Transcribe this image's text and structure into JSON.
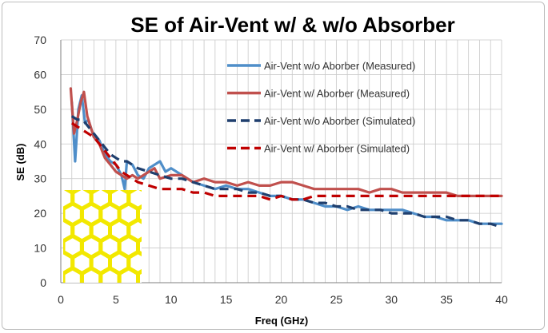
{
  "chart_data": {
    "type": "line",
    "title": "SE of Air-Vent w/ & w/o Absorber",
    "xlabel": "Freq (GHz)",
    "ylabel": "SE (dB)",
    "xlim": [
      0,
      40
    ],
    "ylim": [
      0,
      70
    ],
    "x_ticks": [
      0,
      5,
      10,
      15,
      20,
      25,
      30,
      35,
      40
    ],
    "y_ticks": [
      0,
      10,
      20,
      30,
      40,
      50,
      60,
      70
    ],
    "grid": true,
    "legend_position": "top-right",
    "series": [
      {
        "name": "Air-Vent w/o Aborber (Measured)",
        "color": "#4f8ec9",
        "dash": "solid",
        "points": [
          [
            1,
            52
          ],
          [
            1.3,
            35
          ],
          [
            1.6,
            50
          ],
          [
            1.9,
            54
          ],
          [
            2.2,
            46
          ],
          [
            2.5,
            47
          ],
          [
            3,
            42
          ],
          [
            3.5,
            41
          ],
          [
            4,
            37
          ],
          [
            4.5,
            35
          ],
          [
            5,
            34
          ],
          [
            5.5,
            31
          ],
          [
            5.8,
            27
          ],
          [
            6,
            35
          ],
          [
            6.5,
            34
          ],
          [
            7,
            31
          ],
          [
            7.5,
            30
          ],
          [
            8,
            33
          ],
          [
            8.5,
            34
          ],
          [
            9,
            35
          ],
          [
            9.5,
            32
          ],
          [
            10,
            33
          ],
          [
            11,
            31
          ],
          [
            12,
            29
          ],
          [
            13,
            28
          ],
          [
            14,
            27
          ],
          [
            15,
            28
          ],
          [
            16,
            27
          ],
          [
            17,
            27
          ],
          [
            18,
            26
          ],
          [
            19,
            25
          ],
          [
            20,
            25
          ],
          [
            21,
            24
          ],
          [
            22,
            24
          ],
          [
            23,
            23
          ],
          [
            24,
            22
          ],
          [
            25,
            22
          ],
          [
            26,
            21
          ],
          [
            27,
            22
          ],
          [
            28,
            21
          ],
          [
            29,
            21
          ],
          [
            30,
            21
          ],
          [
            31,
            21
          ],
          [
            32,
            20
          ],
          [
            33,
            19
          ],
          [
            34,
            19
          ],
          [
            35,
            18
          ],
          [
            36,
            18
          ],
          [
            37,
            18
          ],
          [
            38,
            17
          ],
          [
            39,
            17
          ],
          [
            40,
            17
          ]
        ]
      },
      {
        "name": "Air-Vent w/ Aborber (Measured)",
        "color": "#c0504d",
        "dash": "solid",
        "points": [
          [
            0.9,
            56
          ],
          [
            1.2,
            43
          ],
          [
            1.5,
            47
          ],
          [
            1.8,
            52
          ],
          [
            2.1,
            55
          ],
          [
            2.4,
            48
          ],
          [
            3,
            42
          ],
          [
            3.5,
            40
          ],
          [
            4,
            36
          ],
          [
            4.5,
            34
          ],
          [
            5,
            32
          ],
          [
            5.5,
            31
          ],
          [
            6,
            30
          ],
          [
            6.5,
            31
          ],
          [
            7,
            30
          ],
          [
            7.5,
            31
          ],
          [
            8,
            32
          ],
          [
            8.5,
            33
          ],
          [
            9,
            30
          ],
          [
            10,
            31
          ],
          [
            11,
            31
          ],
          [
            12,
            29
          ],
          [
            13,
            30
          ],
          [
            14,
            29
          ],
          [
            15,
            29
          ],
          [
            16,
            28
          ],
          [
            17,
            29
          ],
          [
            18,
            28
          ],
          [
            19,
            28
          ],
          [
            20,
            29
          ],
          [
            21,
            29
          ],
          [
            22,
            28
          ],
          [
            23,
            27
          ],
          [
            24,
            27
          ],
          [
            25,
            27
          ],
          [
            26,
            27
          ],
          [
            27,
            27
          ],
          [
            28,
            26
          ],
          [
            29,
            27
          ],
          [
            30,
            27
          ],
          [
            31,
            26
          ],
          [
            32,
            26
          ],
          [
            33,
            26
          ],
          [
            34,
            26
          ],
          [
            35,
            26
          ],
          [
            36,
            25
          ],
          [
            37,
            25
          ],
          [
            38,
            25
          ],
          [
            39,
            25
          ],
          [
            40,
            25
          ]
        ]
      },
      {
        "name": "Air-Vent w/o Aborber (Simulated)",
        "color": "#1f3f6e",
        "dash": "dashed",
        "points": [
          [
            1,
            48
          ],
          [
            1.5,
            47
          ],
          [
            2,
            47
          ],
          [
            2.5,
            45
          ],
          [
            3,
            43
          ],
          [
            3.5,
            41
          ],
          [
            4,
            39
          ],
          [
            4.5,
            37
          ],
          [
            5,
            36
          ],
          [
            5.5,
            35
          ],
          [
            6,
            35
          ],
          [
            7,
            33
          ],
          [
            8,
            32
          ],
          [
            9,
            31
          ],
          [
            10,
            30
          ],
          [
            11,
            30
          ],
          [
            12,
            29
          ],
          [
            13,
            28
          ],
          [
            14,
            27
          ],
          [
            15,
            27
          ],
          [
            16,
            27
          ],
          [
            17,
            26
          ],
          [
            18,
            26
          ],
          [
            19,
            25
          ],
          [
            20,
            25
          ],
          [
            21,
            24
          ],
          [
            22,
            24
          ],
          [
            23,
            23
          ],
          [
            24,
            23
          ],
          [
            25,
            22
          ],
          [
            26,
            22
          ],
          [
            27,
            21
          ],
          [
            28,
            21
          ],
          [
            29,
            21
          ],
          [
            30,
            20
          ],
          [
            31,
            20
          ],
          [
            32,
            20
          ],
          [
            33,
            19
          ],
          [
            34,
            19
          ],
          [
            35,
            19
          ],
          [
            36,
            18
          ],
          [
            37,
            18
          ],
          [
            38,
            17
          ],
          [
            39,
            17
          ],
          [
            40,
            16
          ]
        ]
      },
      {
        "name": "Air-Vent w/ Aborber (Simulated)",
        "color": "#c00000",
        "dash": "dashed",
        "points": [
          [
            1,
            46
          ],
          [
            1.5,
            45
          ],
          [
            2,
            44
          ],
          [
            2.5,
            43
          ],
          [
            3,
            42
          ],
          [
            3.5,
            40
          ],
          [
            4,
            38
          ],
          [
            4.5,
            36
          ],
          [
            5,
            34
          ],
          [
            5.5,
            32
          ],
          [
            6,
            31
          ],
          [
            7,
            29
          ],
          [
            8,
            28
          ],
          [
            9,
            27
          ],
          [
            10,
            27
          ],
          [
            11,
            27
          ],
          [
            12,
            26
          ],
          [
            13,
            26
          ],
          [
            14,
            25
          ],
          [
            15,
            25
          ],
          [
            16,
            25
          ],
          [
            17,
            25
          ],
          [
            18,
            25
          ],
          [
            19,
            24
          ],
          [
            20,
            25
          ],
          [
            21,
            24
          ],
          [
            22,
            24
          ],
          [
            23,
            25
          ],
          [
            24,
            25
          ],
          [
            25,
            25
          ],
          [
            26,
            25
          ],
          [
            27,
            25
          ],
          [
            28,
            25
          ],
          [
            29,
            25
          ],
          [
            30,
            25
          ],
          [
            31,
            25
          ],
          [
            32,
            25
          ],
          [
            33,
            25
          ],
          [
            34,
            25
          ],
          [
            35,
            25
          ],
          [
            36,
            25
          ],
          [
            37,
            25
          ],
          [
            38,
            25
          ],
          [
            39,
            25
          ],
          [
            40,
            25
          ]
        ]
      }
    ]
  },
  "inset_image": {
    "description_icon": "hexagonal-mesh-icon",
    "colors": {
      "hex_fill": "#f2e800",
      "hex_stroke": "#c8c000",
      "background": "#a9a9a9"
    }
  }
}
